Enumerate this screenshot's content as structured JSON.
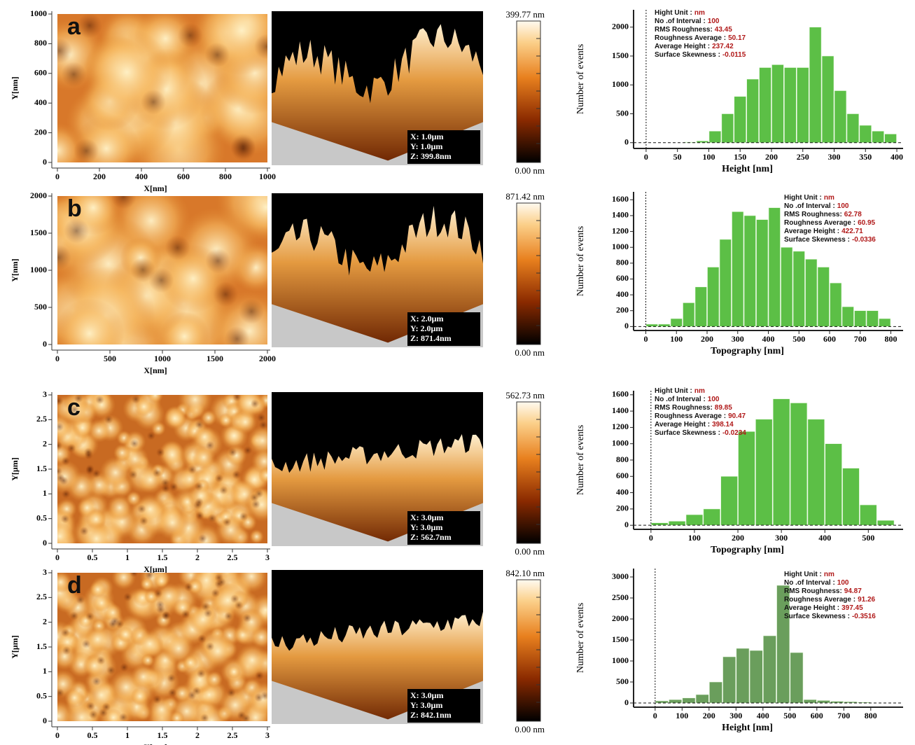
{
  "chart_data": [
    {
      "type": "histogram",
      "ylabel": "Number of events",
      "xlabel": "Height [nm]",
      "color": "#5cbf46",
      "bins": [
        0,
        20,
        40,
        60,
        80,
        100,
        120,
        140,
        160,
        180,
        200,
        220,
        240,
        260,
        280,
        300,
        320,
        340,
        360,
        380,
        400
      ],
      "values": [
        0,
        0,
        0,
        10,
        30,
        200,
        500,
        800,
        1100,
        1300,
        1350,
        1300,
        1300,
        2000,
        1500,
        900,
        500,
        300,
        200,
        150
      ],
      "xlim": [
        -20,
        410
      ],
      "ylim": [
        -100,
        2300
      ],
      "xticks": [
        0,
        50,
        100,
        150,
        200,
        250,
        300,
        350,
        400
      ],
      "yticks": [
        0,
        500,
        1000,
        1500,
        2000
      ],
      "zero_lines": true,
      "stats": [
        {
          "label": "Hight Unit :",
          "value": "nm"
        },
        {
          "label": "No .of Interval :",
          "value": 100
        },
        {
          "label": "RMS Roughness:",
          "value": 43.45
        },
        {
          "label": "Roughness Average :",
          "value": 50.17
        },
        {
          "label": "Average Height :",
          "value": 237.42
        },
        {
          "label": "Surface Skewness :",
          "value": -0.0115
        }
      ]
    },
    {
      "type": "histogram",
      "ylabel": "Number of events",
      "xlabel": "Topography [nm]",
      "color": "#5cbf46",
      "bins": [
        0,
        40,
        80,
        120,
        160,
        200,
        240,
        280,
        320,
        360,
        400,
        440,
        480,
        520,
        560,
        600,
        640,
        680,
        720,
        760,
        800
      ],
      "values": [
        30,
        30,
        100,
        300,
        500,
        750,
        1100,
        1450,
        1400,
        1350,
        1500,
        1000,
        950,
        850,
        750,
        550,
        250,
        200,
        200,
        100
      ],
      "xlim": [
        -40,
        840
      ],
      "ylim": [
        -50,
        1700
      ],
      "xticks": [
        0,
        100,
        200,
        300,
        400,
        500,
        600,
        700,
        800
      ],
      "yticks": [
        0,
        200,
        400,
        600,
        800,
        1000,
        1200,
        1400,
        1600
      ],
      "zero_lines": true,
      "stats": [
        {
          "label": "Hight Unit :",
          "value": "nm"
        },
        {
          "label": "No .of Interval :",
          "value": 100
        },
        {
          "label": "RMS Roughness:",
          "value": 62.78
        },
        {
          "label": "Roughness Average :",
          "value": 60.95
        },
        {
          "label": "Average Height :",
          "value": 422.71
        },
        {
          "label": "Surface Skewness :",
          "value": -0.0336
        }
      ]
    },
    {
      "type": "histogram",
      "ylabel": "Number of events",
      "xlabel": "Topography [nm]",
      "color": "#5cbf46",
      "bins": [
        0,
        40,
        80,
        120,
        160,
        200,
        240,
        280,
        320,
        360,
        400,
        440,
        480,
        520,
        560
      ],
      "values": [
        30,
        50,
        130,
        200,
        600,
        1150,
        1300,
        1550,
        1500,
        1300,
        1000,
        700,
        250,
        60
      ],
      "xlim": [
        -40,
        580
      ],
      "ylim": [
        -50,
        1650
      ],
      "xticks": [
        0,
        100,
        200,
        300,
        400,
        500
      ],
      "yticks": [
        0,
        200,
        400,
        600,
        800,
        1000,
        1200,
        1400,
        1600
      ],
      "zero_lines": true,
      "stats": [
        {
          "label": "Hight Unit :",
          "value": "nm"
        },
        {
          "label": "No .of Interval :",
          "value": 100
        },
        {
          "label": "RMS Roughness:",
          "value": 89.85
        },
        {
          "label": "Roughness Average :",
          "value": 90.47
        },
        {
          "label": "Average Height :",
          "value": 398.14
        },
        {
          "label": "Surface Skewness :",
          "value": -0.0234
        }
      ]
    },
    {
      "type": "histogram",
      "ylabel": "Number of events",
      "xlabel": "Height [nm]",
      "color": "#6a9e5c",
      "bins": [
        0,
        50,
        100,
        150,
        200,
        250,
        300,
        350,
        400,
        450,
        500,
        550,
        600,
        650,
        700,
        750,
        800
      ],
      "values": [
        50,
        80,
        120,
        200,
        500,
        1100,
        1300,
        1250,
        1600,
        2800,
        1200,
        80,
        60,
        40,
        30,
        20
      ],
      "xlim": [
        -80,
        920
      ],
      "ylim": [
        -100,
        3200
      ],
      "xticks": [
        0,
        100,
        200,
        300,
        400,
        500,
        600,
        700,
        800
      ],
      "yticks": [
        0,
        500,
        1000,
        1500,
        2000,
        2500,
        3000
      ],
      "zero_lines": true,
      "stats": [
        {
          "label": "Hight Unit :",
          "value": "nm"
        },
        {
          "label": "No .of Interval :",
          "value": 100
        },
        {
          "label": "RMS Roughness:",
          "value": 94.87
        },
        {
          "label": "Roughness Average :",
          "value": 91.26
        },
        {
          "label": "Average Height :",
          "value": 397.45
        },
        {
          "label": "Surface Skewness :",
          "value": -0.3516
        }
      ]
    }
  ],
  "images": [
    {
      "label": "a",
      "xlabel": "X[nm]",
      "ylabel": "Y[nm]",
      "xlim": [
        0,
        1000
      ],
      "ylim": [
        0,
        1000
      ],
      "xticks": [
        0,
        200,
        400,
        600,
        800,
        1000
      ],
      "yticks": [
        0,
        200,
        400,
        600,
        800,
        1000
      ],
      "scan_size": [
        "X: 1.0μm",
        "Y: 1.0μm",
        "Z: 399.8nm"
      ],
      "colorbar_max": "399.77 nm",
      "colorbar_min": "0.00 nm"
    },
    {
      "label": "b",
      "xlabel": "X[nm]",
      "ylabel": "Y[nm]",
      "xlim": [
        0,
        2000
      ],
      "ylim": [
        0,
        2000
      ],
      "xticks": [
        0,
        500,
        1000,
        1500,
        2000
      ],
      "yticks": [
        0,
        500,
        1000,
        1500,
        2000
      ],
      "scan_size": [
        "X: 2.0μm",
        "Y: 2.0μm",
        "Z: 871.4nm"
      ],
      "colorbar_max": "871.42 nm",
      "colorbar_min": "0.00 nm"
    },
    {
      "label": "c",
      "xlabel": "X[μm]",
      "ylabel": "Y[μm]",
      "xlim": [
        0,
        3
      ],
      "ylim": [
        0,
        3
      ],
      "xticks": [
        0,
        0.5,
        1,
        1.5,
        2,
        2.5,
        3
      ],
      "yticks": [
        0,
        0.5,
        1,
        1.5,
        2,
        2.5,
        3
      ],
      "scan_size": [
        "X: 3.0μm",
        "Y: 3.0μm",
        "Z: 562.7nm"
      ],
      "colorbar_max": "562.73 nm",
      "colorbar_min": "0.00 nm"
    },
    {
      "label": "d",
      "xlabel": "X[μm]",
      "ylabel": "Y[μm]",
      "xlim": [
        0,
        3
      ],
      "ylim": [
        0,
        3
      ],
      "xticks": [
        0,
        0.5,
        1,
        1.5,
        2,
        2.5,
        3
      ],
      "yticks": [
        0,
        0.5,
        1,
        1.5,
        2,
        2.5,
        3
      ],
      "scan_size": [
        "X: 3.0μm",
        "Y: 3.0μm",
        "Z: 842.1nm"
      ],
      "colorbar_max": "842.10 nm",
      "colorbar_min": "0.00 nm"
    }
  ]
}
